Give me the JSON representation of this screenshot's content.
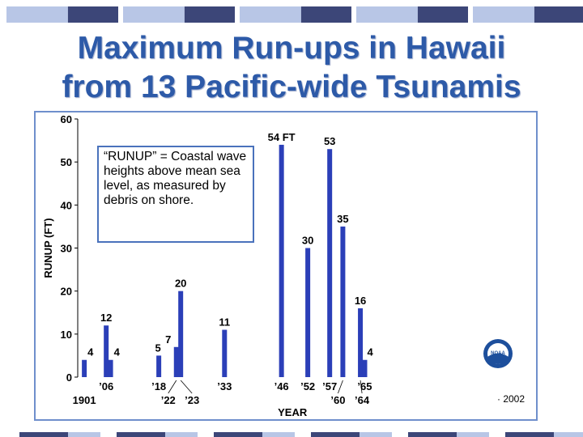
{
  "slide": {
    "title_line1": "Maximum Run-ups in Hawaii",
    "title_line2": "from 13 Pacific-wide Tsunamis",
    "colors": {
      "title": "#2d5aa8",
      "bar": "#2b3fb8",
      "frame": "#6f8fcc",
      "deco_dark": "#3c4678",
      "deco_light": "#b8c6e6"
    }
  },
  "note": {
    "text": "“RUNUP” = Coastal wave heights above mean sea level, as measured by debris on shore."
  },
  "logo": {
    "icon": "noaa-logo-icon",
    "label": "NOAA"
  },
  "footer_note": "· 2002",
  "chart_data": {
    "type": "bar",
    "xlabel": "YEAR",
    "ylabel": "RUNUP (FT)",
    "ylim": [
      0,
      60
    ],
    "yticks": [
      0,
      10,
      20,
      30,
      40,
      50,
      60
    ],
    "grid": false,
    "bars": [
      {
        "year": 1901.5,
        "value": 4,
        "label": "4"
      },
      {
        "year": 1906.5,
        "value": 12,
        "label": "12"
      },
      {
        "year": 1907.5,
        "value": 4,
        "label": "4"
      },
      {
        "year": 1918.5,
        "value": 5,
        "label": "5"
      },
      {
        "year": 1922.5,
        "value": 7,
        "label": "7"
      },
      {
        "year": 1923.5,
        "value": 20,
        "label": "20"
      },
      {
        "year": 1933.5,
        "value": 11,
        "label": "11"
      },
      {
        "year": 1946.5,
        "value": 54,
        "label": "54 FT"
      },
      {
        "year": 1952.5,
        "value": 30,
        "label": "30"
      },
      {
        "year": 1957.5,
        "value": 53,
        "label": "53"
      },
      {
        "year": 1960.5,
        "value": 35,
        "label": "35"
      },
      {
        "year": 1964.5,
        "value": 16,
        "label": "16"
      },
      {
        "year": 1965.5,
        "value": 4,
        "label": "4"
      }
    ],
    "xtick_labels_upper": [
      {
        "year": 1906.5,
        "text": "’06"
      },
      {
        "year": 1918.5,
        "text": "’18"
      },
      {
        "year": 1933.5,
        "text": "’33"
      },
      {
        "year": 1946.5,
        "text": "’46"
      },
      {
        "year": 1952.5,
        "text": "’52"
      },
      {
        "year": 1957.5,
        "text": "’57"
      },
      {
        "year": 1965.5,
        "text": "’65"
      }
    ],
    "xtick_labels_lower": [
      {
        "year": 1901.5,
        "text": "1901"
      },
      {
        "year": 1922.5,
        "text": "’22"
      },
      {
        "year": 1923.5,
        "text": "’23"
      },
      {
        "year": 1960.5,
        "text": "’60"
      },
      {
        "year": 1964.5,
        "text": "’64"
      }
    ],
    "xrange": [
      1900,
      1985
    ]
  }
}
